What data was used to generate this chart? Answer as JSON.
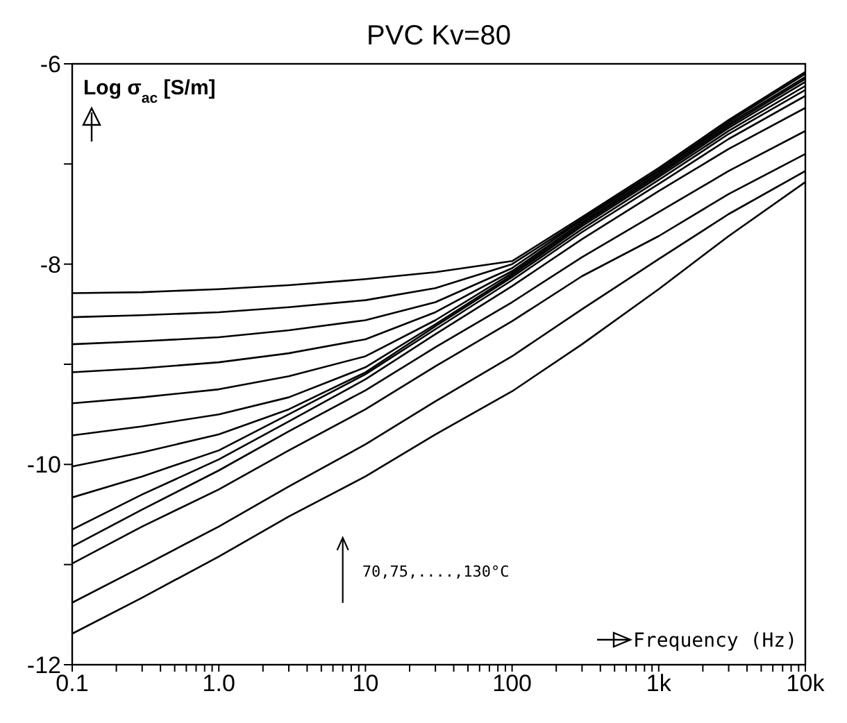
{
  "chart_data": {
    "type": "line",
    "title": "PVC Kv=80",
    "xlabel": "Frequency (Hz)",
    "ylabel": "Log σ$_{ac}$ [S/m]",
    "annotations": [
      "70,75,....,130°C"
    ],
    "log": "x",
    "grid": false,
    "marker": "none",
    "line_style": "solid",
    "x": [
      0.1,
      0.3,
      1,
      3,
      10,
      30,
      100,
      300,
      1000,
      3000,
      10000
    ],
    "xlim": [
      0.1,
      10000
    ],
    "xticks": [
      {
        "value": 0.1,
        "label": "0.1"
      },
      {
        "value": 0.2,
        "label": null
      },
      {
        "value": 0.3,
        "label": null
      },
      {
        "value": 0.4,
        "label": null
      },
      {
        "value": 0.5,
        "label": null
      },
      {
        "value": 0.6,
        "label": null
      },
      {
        "value": 0.7,
        "label": null
      },
      {
        "value": 0.8,
        "label": null
      },
      {
        "value": 0.9,
        "label": null
      },
      {
        "value": 1,
        "label": "1.0"
      },
      {
        "value": 2,
        "label": null
      },
      {
        "value": 3,
        "label": null
      },
      {
        "value": 4,
        "label": null
      },
      {
        "value": 5,
        "label": null
      },
      {
        "value": 6,
        "label": null
      },
      {
        "value": 7,
        "label": null
      },
      {
        "value": 8,
        "label": null
      },
      {
        "value": 9,
        "label": null
      },
      10,
      {
        "value": 20,
        "label": null
      },
      {
        "value": 30,
        "label": null
      },
      {
        "value": 40,
        "label": null
      },
      {
        "value": 50,
        "label": null
      },
      {
        "value": 60,
        "label": null
      },
      {
        "value": 70,
        "label": null
      },
      {
        "value": 80,
        "label": null
      },
      {
        "value": 90,
        "label": null
      },
      100,
      {
        "value": 200,
        "label": null
      },
      {
        "value": 300,
        "label": null
      },
      {
        "value": 400,
        "label": null
      },
      {
        "value": 500,
        "label": null
      },
      {
        "value": 600,
        "label": null
      },
      {
        "value": 700,
        "label": null
      },
      {
        "value": 800,
        "label": null
      },
      {
        "value": 900,
        "label": null
      },
      {
        "value": 1000,
        "label": "1k"
      },
      {
        "value": 2000,
        "label": null
      },
      {
        "value": 3000,
        "label": null
      },
      {
        "value": 4000,
        "label": null
      },
      {
        "value": 5000,
        "label": null
      },
      {
        "value": 6000,
        "label": null
      },
      {
        "value": 7000,
        "label": null
      },
      {
        "value": 8000,
        "label": null
      },
      {
        "value": 9000,
        "label": null
      },
      {
        "value": 10000,
        "label": "10k"
      }
    ],
    "ylim": [
      -12,
      -6
    ],
    "yticks": [
      -12,
      {
        "value": -11,
        "label": null
      },
      -10,
      {
        "value": -9,
        "label": null
      },
      -8,
      {
        "value": -7,
        "label": null
      },
      -6
    ],
    "series": [
      {
        "color": "#000000",
        "values": [
          -11.69,
          -11.33,
          -10.92,
          -10.52,
          -10.12,
          -9.7,
          -9.27,
          -8.8,
          -8.25,
          -7.72,
          -7.18
        ]
      },
      {
        "color": "#000000",
        "values": [
          -11.38,
          -11.02,
          -10.62,
          -10.22,
          -9.8,
          -9.37,
          -8.92,
          -8.45,
          -7.95,
          -7.5,
          -7.07
        ]
      },
      {
        "color": "#000000",
        "values": [
          -10.99,
          -10.62,
          -10.25,
          -9.86,
          -9.45,
          -9.02,
          -8.57,
          -8.12,
          -7.72,
          -7.3,
          -6.9
        ]
      },
      {
        "color": "#000000",
        "values": [
          -10.82,
          -10.45,
          -10.06,
          -9.67,
          -9.26,
          -8.83,
          -8.38,
          -7.93,
          -7.48,
          -7.07,
          -6.67
        ]
      },
      {
        "color": "#000000",
        "values": [
          -10.65,
          -10.3,
          -9.95,
          -9.57,
          -9.15,
          -8.7,
          -8.22,
          -7.75,
          -7.27,
          -6.85,
          -6.44
        ]
      },
      {
        "color": "#000000",
        "values": [
          -10.33,
          -10.12,
          -9.86,
          -9.5,
          -9.1,
          -8.65,
          -8.16,
          -7.68,
          -7.2,
          -6.75,
          -6.32
        ]
      },
      {
        "color": "#000000",
        "values": [
          -10.02,
          -9.88,
          -9.7,
          -9.45,
          -9.08,
          -8.62,
          -8.13,
          -7.65,
          -7.16,
          -6.7,
          -6.26
        ]
      },
      {
        "color": "#000000",
        "values": [
          -9.71,
          -9.62,
          -9.5,
          -9.33,
          -9.03,
          -8.6,
          -8.11,
          -7.62,
          -7.13,
          -6.67,
          -6.22
        ]
      },
      {
        "color": "#000000",
        "values": [
          -9.39,
          -9.33,
          -9.25,
          -9.12,
          -8.92,
          -8.56,
          -8.09,
          -7.6,
          -7.11,
          -6.64,
          -6.18
        ]
      },
      {
        "color": "#000000",
        "values": [
          -9.08,
          -9.04,
          -8.98,
          -8.89,
          -8.75,
          -8.48,
          -8.07,
          -7.58,
          -7.09,
          -6.62,
          -6.15
        ]
      },
      {
        "color": "#000000",
        "values": [
          -8.8,
          -8.77,
          -8.73,
          -8.66,
          -8.56,
          -8.38,
          -8.04,
          -7.56,
          -7.07,
          -6.6,
          -6.13
        ]
      },
      {
        "color": "#000000",
        "values": [
          -8.53,
          -8.51,
          -8.48,
          -8.43,
          -8.36,
          -8.24,
          -8,
          -7.55,
          -7.06,
          -6.58,
          -6.1
        ]
      },
      {
        "color": "#000000",
        "values": [
          -8.29,
          -8.28,
          -8.25,
          -8.21,
          -8.15,
          -8.08,
          -7.97,
          -7.53,
          -7.04,
          -6.56,
          -6.08
        ]
      }
    ]
  }
}
